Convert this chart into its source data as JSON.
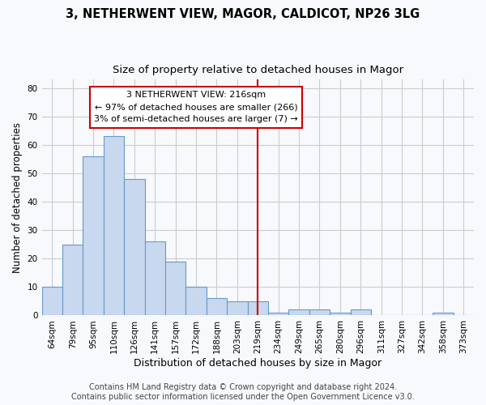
{
  "title1": "3, NETHERWENT VIEW, MAGOR, CALDICOT, NP26 3LG",
  "title2": "Size of property relative to detached houses in Magor",
  "xlabel": "Distribution of detached houses by size in Magor",
  "ylabel": "Number of detached properties",
  "categories": [
    "64sqm",
    "79sqm",
    "95sqm",
    "110sqm",
    "126sqm",
    "141sqm",
    "157sqm",
    "172sqm",
    "188sqm",
    "203sqm",
    "219sqm",
    "234sqm",
    "249sqm",
    "265sqm",
    "280sqm",
    "296sqm",
    "311sqm",
    "327sqm",
    "342sqm",
    "358sqm",
    "373sqm"
  ],
  "values": [
    10,
    25,
    56,
    63,
    48,
    26,
    19,
    10,
    6,
    5,
    5,
    1,
    2,
    2,
    1,
    2,
    0,
    0,
    0,
    1,
    0
  ],
  "bar_color": "#c8d8ee",
  "bar_edge_color": "#6699cc",
  "vline_x_index": 10,
  "vline_color": "#cc0000",
  "annotation_text": "3 NETHERWENT VIEW: 216sqm\n← 97% of detached houses are smaller (266)\n3% of semi-detached houses are larger (7) →",
  "annotation_box_color": "#ffffff",
  "annotation_box_edge": "#cc0000",
  "ylim": [
    0,
    83
  ],
  "yticks": [
    0,
    10,
    20,
    30,
    40,
    50,
    60,
    70,
    80
  ],
  "footer": "Contains HM Land Registry data © Crown copyright and database right 2024.\nContains public sector information licensed under the Open Government Licence v3.0.",
  "bg_color": "#f7f9fc",
  "grid_color": "#cccccc",
  "title1_fontsize": 10.5,
  "title2_fontsize": 9.5,
  "xlabel_fontsize": 9,
  "ylabel_fontsize": 8.5,
  "tick_fontsize": 7.5,
  "annotation_fontsize": 8,
  "footer_fontsize": 7
}
